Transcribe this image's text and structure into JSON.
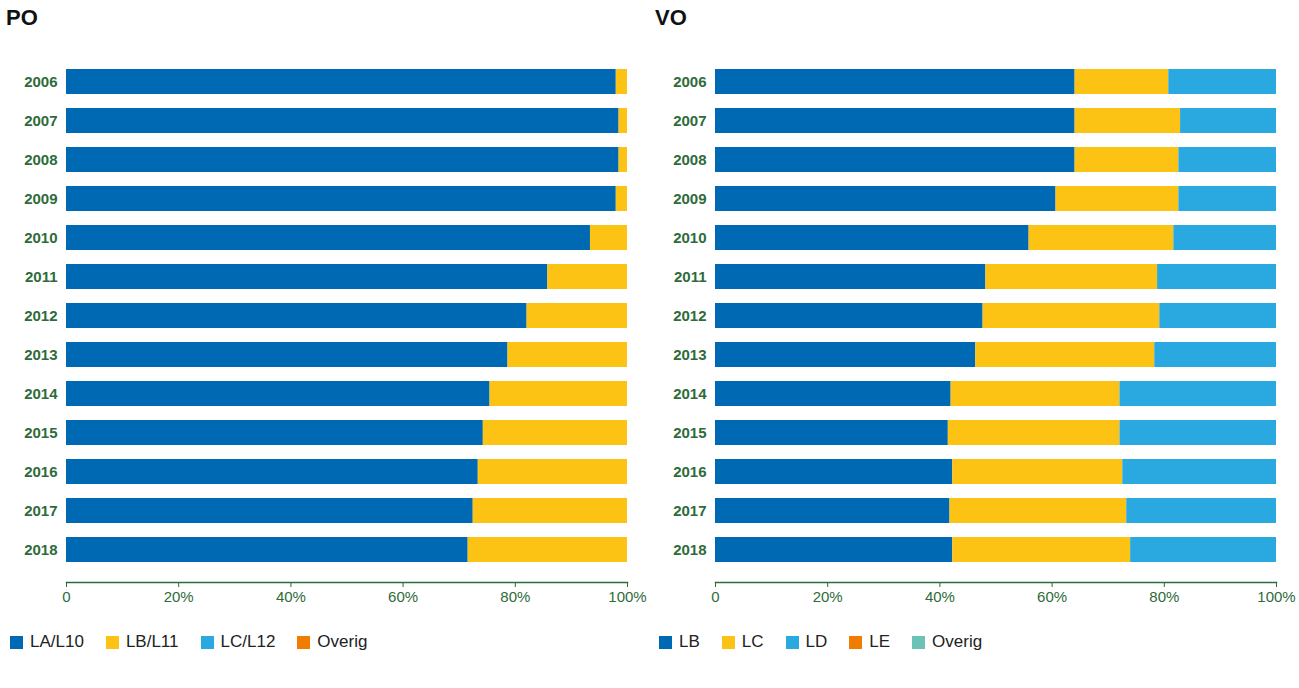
{
  "chart_data": [
    {
      "type": "bar",
      "title": "PO",
      "orientation": "horizontal",
      "stacked": true,
      "legend": "bottom",
      "categories": [
        "2006",
        "2007",
        "2008",
        "2009",
        "2010",
        "2011",
        "2012",
        "2013",
        "2014",
        "2015",
        "2016",
        "2017",
        "2018"
      ],
      "series": [
        {
          "name": "LA/L10",
          "color": "#0069b4",
          "values": [
            98,
            98.5,
            98.5,
            98,
            93.4,
            85.8,
            82.1,
            78.7,
            75.5,
            74.3,
            73.4,
            72.5,
            71.6
          ]
        },
        {
          "name": "LB/L11",
          "color": "#fcc314",
          "values": [
            2,
            1.5,
            1.5,
            2,
            6.6,
            14.2,
            17.9,
            21.3,
            24.5,
            25.7,
            26.6,
            27.5,
            28.4
          ]
        },
        {
          "name": "LC/L12",
          "color": "#2aa9e0",
          "values": [
            0,
            0,
            0,
            0,
            0,
            0,
            0,
            0,
            0,
            0,
            0,
            0,
            0
          ]
        },
        {
          "name": "Overig",
          "color": "#f07d00",
          "values": [
            0,
            0,
            0,
            0,
            0,
            0,
            0,
            0,
            0,
            0,
            0,
            0,
            0
          ]
        }
      ],
      "xlim": [
        0,
        100
      ],
      "xticks": [
        {
          "value": 0,
          "label": "0"
        },
        {
          "value": 20,
          "label": "20%"
        },
        {
          "value": 40,
          "label": "40%"
        },
        {
          "value": 60,
          "label": "60%"
        },
        {
          "value": 80,
          "label": "80%"
        },
        {
          "value": 100,
          "label": "100%"
        }
      ]
    },
    {
      "type": "bar",
      "title": "VO",
      "orientation": "horizontal",
      "stacked": true,
      "legend": "bottom",
      "categories": [
        "2006",
        "2007",
        "2008",
        "2009",
        "2010",
        "2011",
        "2012",
        "2013",
        "2014",
        "2015",
        "2016",
        "2017",
        "2018"
      ],
      "series": [
        {
          "name": "LB",
          "color": "#0069b4",
          "values": [
            64.1,
            64.1,
            64.1,
            60.7,
            55.9,
            48.2,
            47.7,
            46.4,
            42.0,
            41.5,
            42.3,
            41.8,
            42.3
          ]
        },
        {
          "name": "LC",
          "color": "#fcc314",
          "values": [
            16.7,
            18.8,
            18.5,
            21.9,
            25.8,
            30.6,
            31.5,
            31.9,
            30.1,
            30.6,
            30.3,
            31.5,
            31.7
          ]
        },
        {
          "name": "LD",
          "color": "#2aa9e0",
          "values": [
            19.2,
            17.1,
            17.4,
            17.4,
            18.3,
            21.2,
            20.8,
            21.7,
            27.9,
            27.9,
            27.4,
            26.7,
            26.0
          ]
        },
        {
          "name": "LE",
          "color": "#f07d00",
          "values": [
            0,
            0,
            0,
            0,
            0,
            0,
            0,
            0,
            0,
            0,
            0,
            0,
            0
          ]
        },
        {
          "name": "Overig",
          "color": "#6cc2b5",
          "values": [
            0,
            0,
            0,
            0,
            0,
            0,
            0,
            0,
            0,
            0,
            0,
            0,
            0
          ]
        }
      ],
      "xlim": [
        0,
        100
      ],
      "xticks": [
        {
          "value": 0,
          "label": "0"
        },
        {
          "value": 20,
          "label": "20%"
        },
        {
          "value": 40,
          "label": "40%"
        },
        {
          "value": 60,
          "label": "60%"
        },
        {
          "value": 80,
          "label": "80%"
        },
        {
          "value": 100,
          "label": "100%"
        }
      ]
    }
  ]
}
